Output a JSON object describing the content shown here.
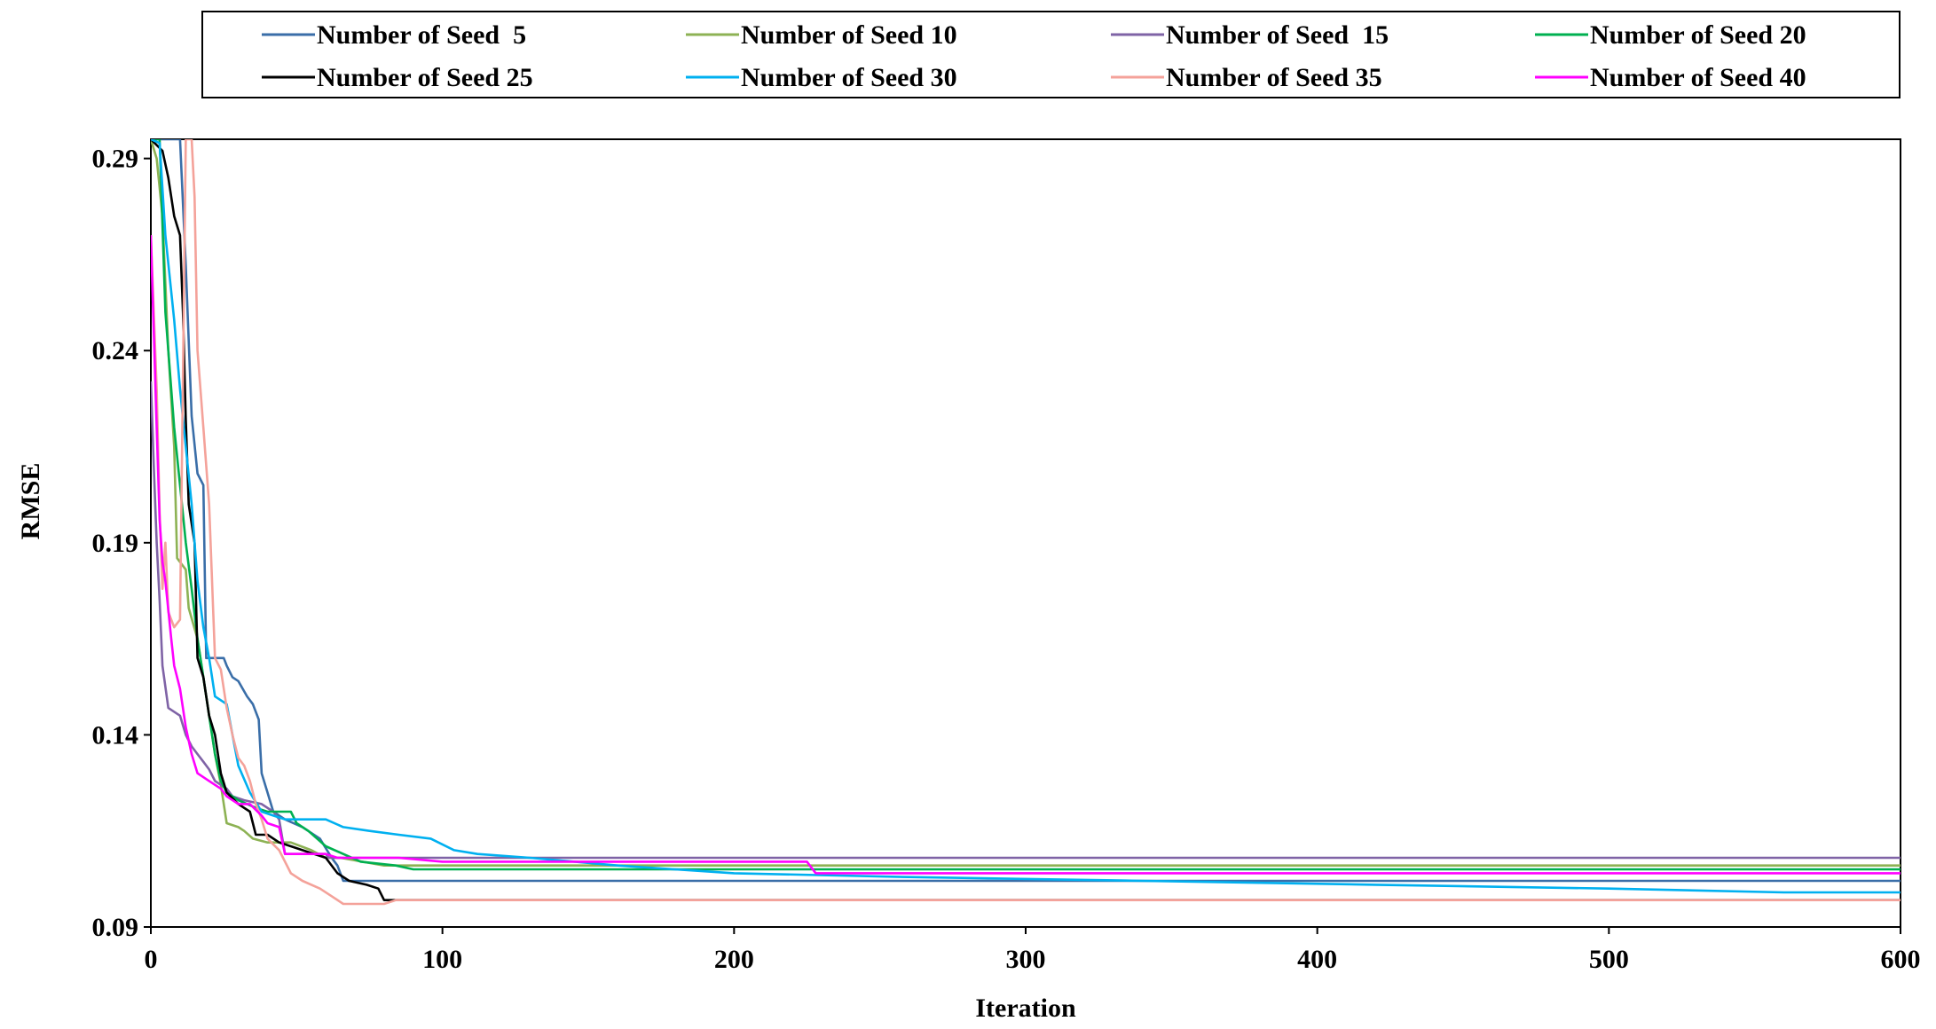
{
  "chart_data": {
    "type": "line",
    "title": "",
    "xlabel": "Iteration",
    "ylabel": "RMSE",
    "xlim": [
      0,
      600
    ],
    "ylim": [
      0.09,
      0.295
    ],
    "xticks": [
      "0",
      "100",
      "200",
      "300",
      "400",
      "500",
      "600"
    ],
    "yticks": [
      "0.09",
      "0.14",
      "0.19",
      "0.24",
      "0.29"
    ],
    "grid": false,
    "legend_position": "top",
    "series": [
      {
        "name": "Number of Seed  5",
        "color": "#3a6ea8",
        "points": [
          [
            0,
            0.295
          ],
          [
            10,
            0.295
          ],
          [
            12,
            0.262
          ],
          [
            14,
            0.223
          ],
          [
            16,
            0.208
          ],
          [
            18,
            0.205
          ],
          [
            19,
            0.16
          ],
          [
            25,
            0.16
          ],
          [
            26,
            0.158
          ],
          [
            28,
            0.155
          ],
          [
            30,
            0.154
          ],
          [
            33,
            0.15
          ],
          [
            35,
            0.148
          ],
          [
            37,
            0.144
          ],
          [
            38,
            0.13
          ],
          [
            40,
            0.125
          ],
          [
            42,
            0.12
          ],
          [
            46,
            0.118
          ],
          [
            52,
            0.116
          ],
          [
            58,
            0.113
          ],
          [
            62,
            0.108
          ],
          [
            64,
            0.106
          ],
          [
            66,
            0.102
          ],
          [
            95,
            0.102
          ],
          [
            600,
            0.102
          ]
        ]
      },
      {
        "name": "Number of Seed 10",
        "color": "#8db254",
        "points": [
          [
            0,
            0.295
          ],
          [
            2,
            0.29
          ],
          [
            4,
            0.275
          ],
          [
            6,
            0.24
          ],
          [
            8,
            0.215
          ],
          [
            9,
            0.186
          ],
          [
            12,
            0.183
          ],
          [
            13,
            0.173
          ],
          [
            16,
            0.165
          ],
          [
            18,
            0.155
          ],
          [
            20,
            0.145
          ],
          [
            22,
            0.135
          ],
          [
            24,
            0.127
          ],
          [
            26,
            0.117
          ],
          [
            30,
            0.116
          ],
          [
            32,
            0.115
          ],
          [
            35,
            0.113
          ],
          [
            40,
            0.112
          ],
          [
            48,
            0.112
          ],
          [
            55,
            0.11
          ],
          [
            60,
            0.108
          ],
          [
            65,
            0.108
          ],
          [
            80,
            0.106
          ],
          [
            600,
            0.106
          ]
        ]
      },
      {
        "name": "Number of Seed  15",
        "color": "#7f63a6",
        "points": [
          [
            0,
            0.232
          ],
          [
            1,
            0.21
          ],
          [
            2,
            0.19
          ],
          [
            3,
            0.175
          ],
          [
            4,
            0.158
          ],
          [
            6,
            0.147
          ],
          [
            10,
            0.145
          ],
          [
            12,
            0.14
          ],
          [
            14,
            0.137
          ],
          [
            16,
            0.135
          ],
          [
            18,
            0.133
          ],
          [
            20,
            0.131
          ],
          [
            22,
            0.128
          ],
          [
            26,
            0.126
          ],
          [
            28,
            0.124
          ],
          [
            32,
            0.123
          ],
          [
            38,
            0.122
          ],
          [
            42,
            0.12
          ],
          [
            44,
            0.118
          ],
          [
            46,
            0.109
          ],
          [
            60,
            0.109
          ],
          [
            61,
            0.108
          ],
          [
            600,
            0.108
          ]
        ]
      },
      {
        "name": "Number of Seed 20",
        "color": "#00b050",
        "points": [
          [
            0,
            0.295
          ],
          [
            3,
            0.295
          ],
          [
            5,
            0.25
          ],
          [
            8,
            0.22
          ],
          [
            10,
            0.205
          ],
          [
            12,
            0.19
          ],
          [
            14,
            0.178
          ],
          [
            16,
            0.165
          ],
          [
            18,
            0.155
          ],
          [
            20,
            0.145
          ],
          [
            22,
            0.135
          ],
          [
            24,
            0.128
          ],
          [
            26,
            0.125
          ],
          [
            30,
            0.123
          ],
          [
            36,
            0.121
          ],
          [
            40,
            0.12
          ],
          [
            44,
            0.12
          ],
          [
            48,
            0.12
          ],
          [
            50,
            0.117
          ],
          [
            54,
            0.115
          ],
          [
            60,
            0.111
          ],
          [
            66,
            0.109
          ],
          [
            72,
            0.107
          ],
          [
            84,
            0.106
          ],
          [
            90,
            0.105
          ],
          [
            600,
            0.105
          ]
        ]
      },
      {
        "name": "Number of Seed 25",
        "color": "#000000",
        "points": [
          [
            0,
            0.295
          ],
          [
            4,
            0.292
          ],
          [
            6,
            0.285
          ],
          [
            8,
            0.275
          ],
          [
            10,
            0.27
          ],
          [
            11,
            0.25
          ],
          [
            12,
            0.222
          ],
          [
            13,
            0.2
          ],
          [
            15,
            0.19
          ],
          [
            16,
            0.16
          ],
          [
            18,
            0.155
          ],
          [
            20,
            0.145
          ],
          [
            22,
            0.14
          ],
          [
            24,
            0.13
          ],
          [
            26,
            0.125
          ],
          [
            30,
            0.122
          ],
          [
            34,
            0.12
          ],
          [
            36,
            0.114
          ],
          [
            40,
            0.114
          ],
          [
            44,
            0.112
          ],
          [
            48,
            0.111
          ],
          [
            52,
            0.11
          ],
          [
            60,
            0.108
          ],
          [
            64,
            0.104
          ],
          [
            68,
            0.102
          ],
          [
            74,
            0.101
          ],
          [
            78,
            0.1
          ],
          [
            80,
            0.097
          ],
          [
            100,
            0.097
          ],
          [
            600,
            0.097
          ]
        ]
      },
      {
        "name": "Number of Seed 30",
        "color": "#00b0f0",
        "points": [
          [
            0,
            0.295
          ],
          [
            3,
            0.294
          ],
          [
            5,
            0.27
          ],
          [
            8,
            0.248
          ],
          [
            10,
            0.23
          ],
          [
            12,
            0.215
          ],
          [
            14,
            0.2
          ],
          [
            16,
            0.18
          ],
          [
            18,
            0.168
          ],
          [
            20,
            0.16
          ],
          [
            22,
            0.15
          ],
          [
            26,
            0.148
          ],
          [
            28,
            0.14
          ],
          [
            30,
            0.132
          ],
          [
            34,
            0.125
          ],
          [
            38,
            0.12
          ],
          [
            42,
            0.119
          ],
          [
            46,
            0.118
          ],
          [
            60,
            0.118
          ],
          [
            66,
            0.116
          ],
          [
            75,
            0.115
          ],
          [
            85,
            0.114
          ],
          [
            96,
            0.113
          ],
          [
            104,
            0.11
          ],
          [
            112,
            0.109
          ],
          [
            130,
            0.108
          ],
          [
            160,
            0.106
          ],
          [
            200,
            0.104
          ],
          [
            260,
            0.103
          ],
          [
            340,
            0.102
          ],
          [
            420,
            0.101
          ],
          [
            500,
            0.1
          ],
          [
            560,
            0.099
          ],
          [
            600,
            0.099
          ]
        ]
      },
      {
        "name": "Number of Seed 35",
        "color": "#f4a29a",
        "points": [
          [
            0,
            0.27
          ],
          [
            2,
            0.23
          ],
          [
            3,
            0.198
          ],
          [
            4,
            0.178
          ],
          [
            5,
            0.19
          ],
          [
            6,
            0.172
          ],
          [
            8,
            0.168
          ],
          [
            10,
            0.17
          ],
          [
            12,
            0.295
          ],
          [
            14,
            0.295
          ],
          [
            15,
            0.28
          ],
          [
            16,
            0.24
          ],
          [
            18,
            0.22
          ],
          [
            20,
            0.2
          ],
          [
            22,
            0.16
          ],
          [
            24,
            0.157
          ],
          [
            26,
            0.147
          ],
          [
            28,
            0.14
          ],
          [
            30,
            0.134
          ],
          [
            32,
            0.132
          ],
          [
            34,
            0.128
          ],
          [
            36,
            0.122
          ],
          [
            38,
            0.118
          ],
          [
            40,
            0.113
          ],
          [
            44,
            0.11
          ],
          [
            48,
            0.104
          ],
          [
            52,
            0.102
          ],
          [
            58,
            0.1
          ],
          [
            62,
            0.098
          ],
          [
            66,
            0.096
          ],
          [
            80,
            0.096
          ],
          [
            84,
            0.097
          ],
          [
            600,
            0.097
          ]
        ]
      },
      {
        "name": "Number of Seed 40",
        "color": "#ff00ff",
        "points": [
          [
            0,
            0.27
          ],
          [
            2,
            0.22
          ],
          [
            3,
            0.196
          ],
          [
            4,
            0.185
          ],
          [
            5,
            0.18
          ],
          [
            7,
            0.165
          ],
          [
            8,
            0.158
          ],
          [
            10,
            0.152
          ],
          [
            12,
            0.142
          ],
          [
            14,
            0.135
          ],
          [
            16,
            0.13
          ],
          [
            20,
            0.128
          ],
          [
            24,
            0.126
          ],
          [
            26,
            0.124
          ],
          [
            30,
            0.122
          ],
          [
            34,
            0.122
          ],
          [
            38,
            0.119
          ],
          [
            40,
            0.117
          ],
          [
            44,
            0.116
          ],
          [
            46,
            0.109
          ],
          [
            60,
            0.109
          ],
          [
            64,
            0.108
          ],
          [
            85,
            0.108
          ],
          [
            100,
            0.107
          ],
          [
            180,
            0.107
          ],
          [
            225,
            0.107
          ],
          [
            228,
            0.104
          ],
          [
            600,
            0.104
          ]
        ]
      }
    ]
  }
}
